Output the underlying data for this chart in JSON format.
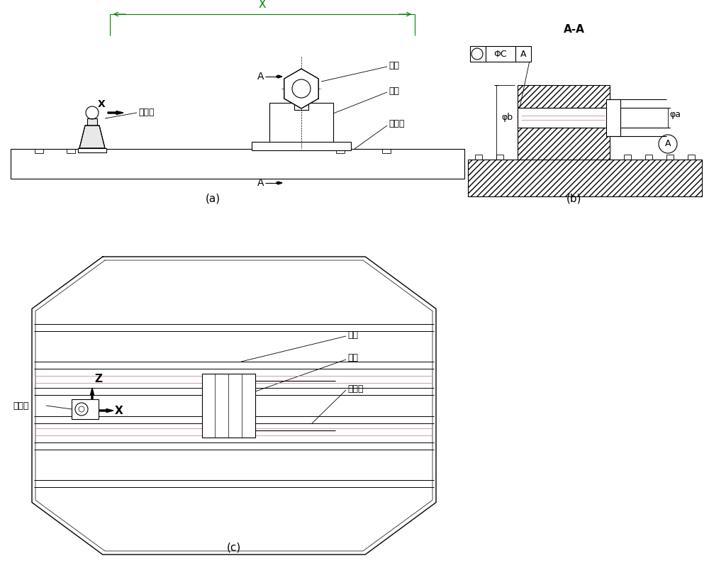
{
  "bg_color": "#ffffff",
  "line_color": "#000000",
  "green_dim": "#008000",
  "pink_line": "#cc88aa",
  "purple_line": "#9966aa",
  "fig_width": 10.0,
  "fig_height": 8.01,
  "label_a": "(a)",
  "label_b": "(b)",
  "label_c": "(c)",
  "text_lingjianzhuang": "零件",
  "text_gongzhuang": "工装",
  "text_gongzuotai": "工作台",
  "text_jizhuqiu": "基准球",
  "text_AA": "A-A",
  "text_phib": "φb",
  "text_phia": "φa",
  "text_X": "X",
  "text_Z": "Z",
  "text_A_arrow": "A",
  "text_phiC": "ΦC",
  "text_A_circle": "A"
}
